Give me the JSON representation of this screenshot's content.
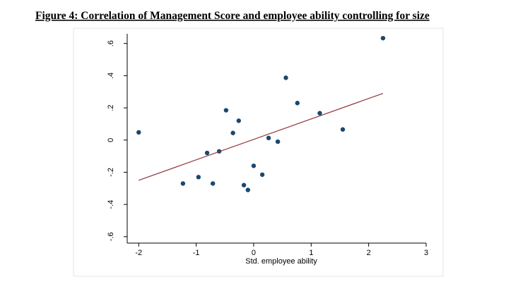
{
  "chart_data": {
    "type": "scatter",
    "title": "Figure 4: Correlation of Management Score and employee ability controlling for size",
    "x_label": "Std. employee ability",
    "series": [
      {
        "color": "#1a476f",
        "x": [
          -2.0,
          -1.23,
          -0.96,
          -0.81,
          -0.71,
          -0.6,
          -0.48,
          -0.36,
          -0.26,
          -0.17,
          -0.1,
          0.0,
          0.15,
          0.26,
          0.42,
          0.56,
          0.76,
          1.15,
          1.55,
          2.25
        ],
        "values": [
          0.048,
          -0.27,
          -0.23,
          -0.08,
          -0.27,
          -0.07,
          0.185,
          0.044,
          0.12,
          -0.28,
          -0.31,
          -0.16,
          -0.215,
          0.013,
          -0.01,
          0.387,
          0.23,
          0.167,
          0.066,
          0.633
        ]
      }
    ],
    "fit_line": {
      "color": "#90353b",
      "x": [
        -2.0,
        2.25
      ],
      "values": [
        -0.25,
        0.29
      ]
    },
    "xlim": [
      -2.2,
      3.0
    ],
    "ylim": [
      -0.64,
      0.66
    ],
    "xticks": [
      -2,
      -1,
      0,
      1,
      2,
      3
    ],
    "yticks": [
      {
        "value": -0.6,
        "label": "-.6"
      },
      {
        "value": -0.4,
        "label": "-.4"
      },
      {
        "value": -0.2,
        "label": "-.2"
      },
      0,
      {
        "value": 0.2,
        "label": ".2"
      },
      {
        "value": 0.4,
        "label": ".4"
      },
      {
        "value": 0.6,
        "label": ".6"
      }
    ]
  }
}
